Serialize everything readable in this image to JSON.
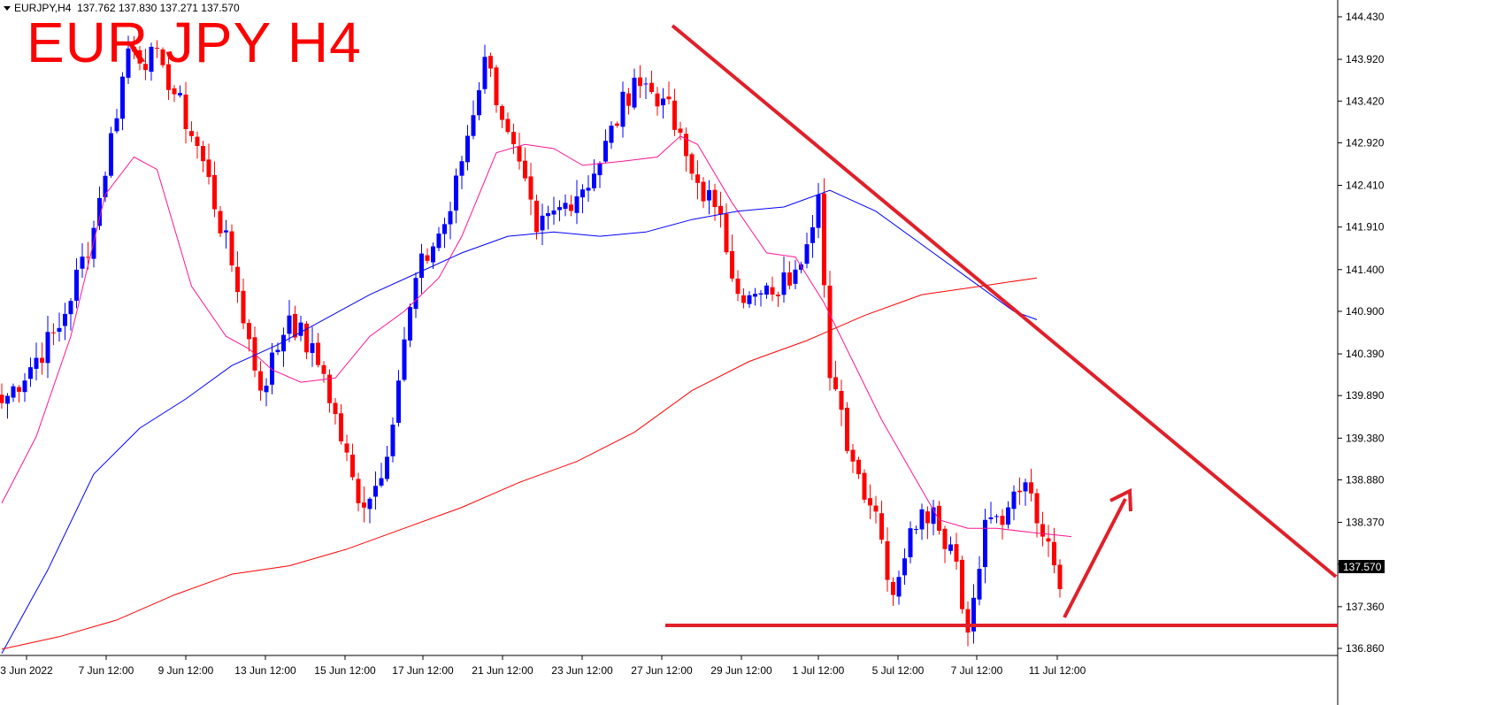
{
  "header": {
    "symbol_label": "EURJPY,H4",
    "ohlc": "137.762 137.830 137.271 137.570"
  },
  "annotation_title": "EUR JPY H4",
  "colors": {
    "bull": "#0000ff",
    "bear": "#ff0000",
    "ma_blue": "#0000ff",
    "ma_pink": "#ff1493",
    "ma_red": "#ff0000",
    "trend": "#e0202a",
    "arrow": "#e0202a",
    "axis": "#000000",
    "price_tag_bg": "#000000",
    "price_tag_fg": "#ffffff"
  },
  "chart_data": {
    "type": "candlestick",
    "title": "",
    "y_ticks": [
      "144.430",
      "143.920",
      "143.420",
      "142.920",
      "142.410",
      "141.910",
      "141.400",
      "140.900",
      "140.390",
      "139.890",
      "139.380",
      "138.880",
      "138.370",
      "137.870",
      "137.360",
      "136.860"
    ],
    "x_ticks": [
      "3 Jun 2022",
      "7 Jun 12:00",
      "9 Jun 12:00",
      "13 Jun 12:00",
      "15 Jun 12:00",
      "17 Jun 12:00",
      "21 Jun 12:00",
      "23 Jun 12:00",
      "27 Jun 12:00",
      "29 Jun 12:00",
      "1 Jul 12:00",
      "5 Jul 12:00",
      "7 Jul 12:00",
      "11 Jul 12:00"
    ],
    "ylim": [
      136.76,
      144.55
    ],
    "current_price": "137.570",
    "key_points": [
      {
        "bar": 0,
        "price": 139.8
      },
      {
        "bar": 10,
        "price": 140.7
      },
      {
        "bar": 16,
        "price": 141.9
      },
      {
        "bar": 22,
        "price": 144.05
      },
      {
        "bar": 28,
        "price": 143.85
      },
      {
        "bar": 35,
        "price": 142.7
      },
      {
        "bar": 40,
        "price": 141.45
      },
      {
        "bar": 45,
        "price": 139.95
      },
      {
        "bar": 50,
        "price": 140.85
      },
      {
        "bar": 56,
        "price": 140.15
      },
      {
        "bar": 62,
        "price": 138.6
      },
      {
        "bar": 66,
        "price": 138.9
      },
      {
        "bar": 72,
        "price": 141.3
      },
      {
        "bar": 78,
        "price": 142.1
      },
      {
        "bar": 84,
        "price": 143.95
      },
      {
        "bar": 88,
        "price": 143.05
      },
      {
        "bar": 93,
        "price": 141.85
      },
      {
        "bar": 98,
        "price": 142.2
      },
      {
        "bar": 103,
        "price": 142.55
      },
      {
        "bar": 110,
        "price": 143.7
      },
      {
        "bar": 115,
        "price": 143.45
      },
      {
        "bar": 120,
        "price": 142.55
      },
      {
        "bar": 124,
        "price": 142.15
      },
      {
        "bar": 129,
        "price": 141.0
      },
      {
        "bar": 134,
        "price": 141.1
      },
      {
        "bar": 138,
        "price": 141.4
      },
      {
        "bar": 142,
        "price": 142.3
      },
      {
        "bar": 144,
        "price": 140.1
      },
      {
        "bar": 148,
        "price": 139.1
      },
      {
        "bar": 152,
        "price": 138.5
      },
      {
        "bar": 155,
        "price": 137.5
      },
      {
        "bar": 158,
        "price": 138.3
      },
      {
        "bar": 162,
        "price": 138.55
      },
      {
        "bar": 166,
        "price": 137.9
      },
      {
        "bar": 168,
        "price": 137.05
      },
      {
        "bar": 171,
        "price": 138.4
      },
      {
        "bar": 175,
        "price": 138.55
      },
      {
        "bar": 178,
        "price": 138.85
      },
      {
        "bar": 181,
        "price": 138.2
      },
      {
        "bar": 184,
        "price": 137.57
      }
    ],
    "moving_averages": [
      {
        "name": "",
        "color": "#ff1493",
        "points": [
          [
            0,
            138.6
          ],
          [
            6,
            139.4
          ],
          [
            12,
            140.6
          ],
          [
            18,
            142.3
          ],
          [
            23,
            142.75
          ],
          [
            27,
            142.6
          ],
          [
            33,
            141.2
          ],
          [
            39,
            140.6
          ],
          [
            43,
            140.45
          ],
          [
            47,
            140.2
          ],
          [
            52,
            140.05
          ],
          [
            58,
            140.1
          ],
          [
            64,
            140.6
          ],
          [
            70,
            140.9
          ],
          [
            76,
            141.3
          ],
          [
            80,
            141.8
          ],
          [
            86,
            142.8
          ],
          [
            91,
            142.9
          ],
          [
            96,
            142.85
          ],
          [
            101,
            142.65
          ],
          [
            108,
            142.7
          ],
          [
            114,
            142.75
          ],
          [
            118,
            143.0
          ],
          [
            121,
            142.9
          ],
          [
            127,
            142.2
          ],
          [
            133,
            141.6
          ],
          [
            138,
            141.55
          ],
          [
            143,
            141.0
          ],
          [
            148,
            140.3
          ],
          [
            153,
            139.6
          ],
          [
            158,
            139.0
          ],
          [
            163,
            138.4
          ],
          [
            168,
            138.3
          ],
          [
            173,
            138.3
          ],
          [
            179,
            138.25
          ],
          [
            186,
            138.2
          ]
        ]
      },
      {
        "name": "",
        "color": "#0000ff",
        "points": [
          [
            0,
            136.8
          ],
          [
            8,
            137.8
          ],
          [
            16,
            138.95
          ],
          [
            24,
            139.5
          ],
          [
            32,
            139.85
          ],
          [
            40,
            140.25
          ],
          [
            48,
            140.5
          ],
          [
            56,
            140.8
          ],
          [
            64,
            141.1
          ],
          [
            72,
            141.35
          ],
          [
            80,
            141.6
          ],
          [
            88,
            141.8
          ],
          [
            96,
            141.85
          ],
          [
            104,
            141.8
          ],
          [
            112,
            141.85
          ],
          [
            120,
            142.0
          ],
          [
            128,
            142.1
          ],
          [
            136,
            142.15
          ],
          [
            144,
            142.35
          ],
          [
            152,
            142.1
          ],
          [
            160,
            141.7
          ],
          [
            168,
            141.3
          ],
          [
            176,
            140.9
          ],
          [
            180,
            140.8
          ]
        ]
      },
      {
        "name": "",
        "color": "#ff0000",
        "points": [
          [
            0,
            136.85
          ],
          [
            10,
            137.0
          ],
          [
            20,
            137.2
          ],
          [
            30,
            137.5
          ],
          [
            40,
            137.75
          ],
          [
            50,
            137.85
          ],
          [
            60,
            138.05
          ],
          [
            70,
            138.3
          ],
          [
            80,
            138.55
          ],
          [
            90,
            138.85
          ],
          [
            100,
            139.1
          ],
          [
            110,
            139.45
          ],
          [
            120,
            139.95
          ],
          [
            130,
            140.3
          ],
          [
            140,
            140.55
          ],
          [
            150,
            140.85
          ],
          [
            160,
            141.1
          ],
          [
            170,
            141.2
          ],
          [
            180,
            141.3
          ]
        ]
      }
    ]
  }
}
